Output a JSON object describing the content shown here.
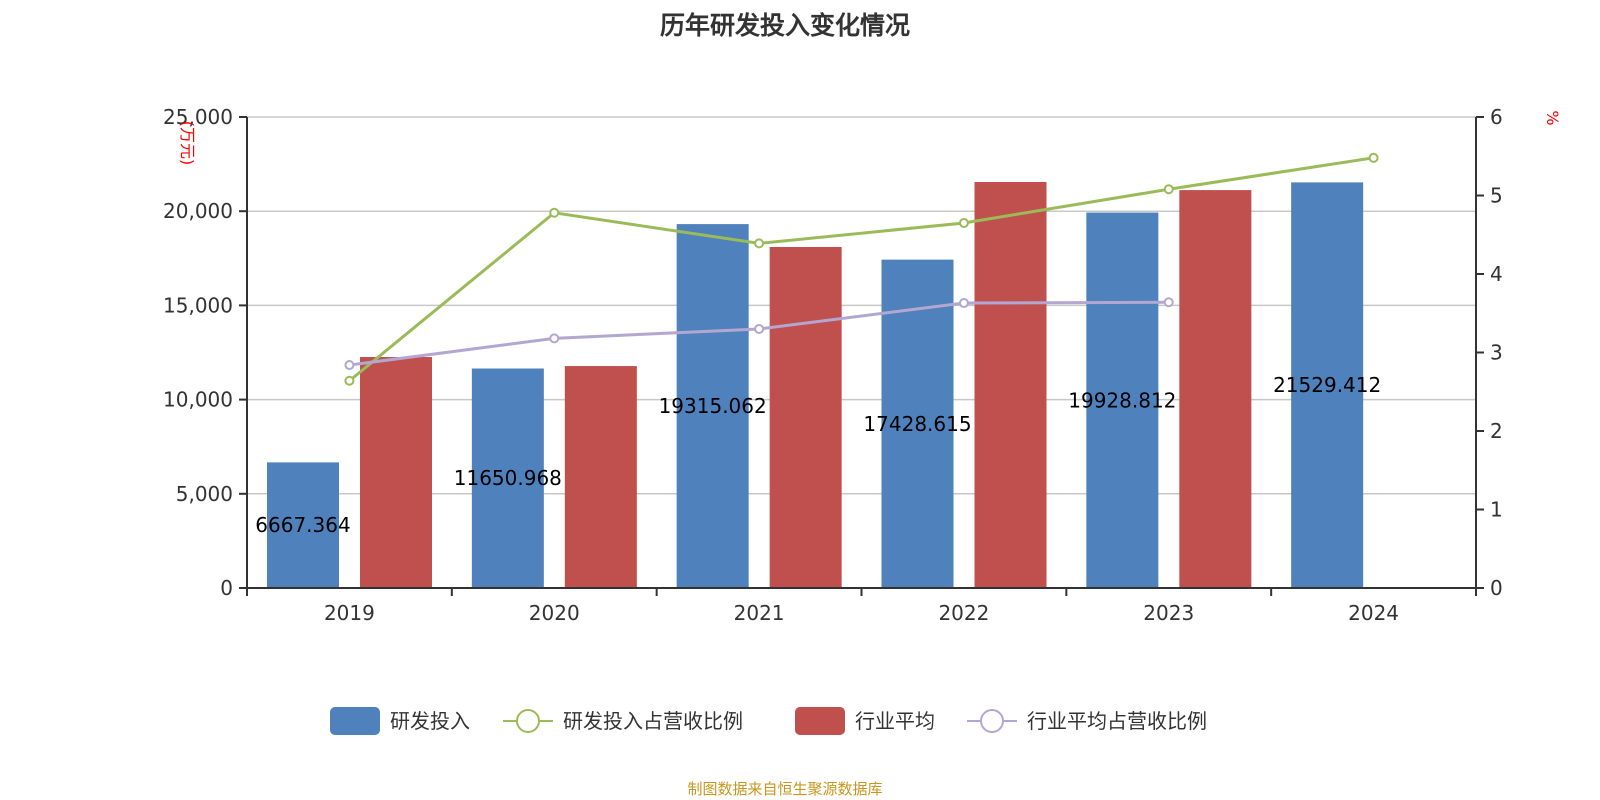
{
  "chart_data": {
    "type": "bar",
    "title": "历年研发投入变化情况",
    "categories": [
      "2019",
      "2020",
      "2021",
      "2022",
      "2023",
      "2024"
    ],
    "left_axis": {
      "label": "(万元)",
      "range": [
        0,
        25000
      ],
      "ticks": [
        "0",
        "5,000",
        "10,000",
        "15,000",
        "20,000",
        "25,000"
      ],
      "tick_values": [
        0,
        5000,
        10000,
        15000,
        20000,
        25000
      ]
    },
    "right_axis": {
      "label": "%",
      "range": [
        0,
        6
      ],
      "ticks": [
        "0",
        "1",
        "2",
        "3",
        "4",
        "5",
        "6"
      ],
      "tick_values": [
        0,
        1,
        2,
        3,
        4,
        5,
        6
      ]
    },
    "grid": true,
    "legend_placement": "bottom",
    "series": [
      {
        "name": "研发投入",
        "type": "bar",
        "axis": "left",
        "color": "#4f81bd",
        "values": [
          6667.364,
          11650.968,
          19315.062,
          17428.615,
          19928.812,
          21529.412
        ],
        "labels": [
          "6667.364",
          "11650.968",
          "19315.062",
          "17428.615",
          "19928.812",
          "21529.412"
        ]
      },
      {
        "name": "研发投入占营收比例",
        "type": "line",
        "axis": "right",
        "color": "#9bbb59",
        "values": [
          2.64,
          4.78,
          4.39,
          4.65,
          5.08,
          5.48
        ]
      },
      {
        "name": "行业平均",
        "type": "bar",
        "axis": "left",
        "color": "#c0504d",
        "values": [
          12260,
          11780,
          18100,
          21550,
          21120,
          null
        ]
      },
      {
        "name": "行业平均占营收比例",
        "type": "line",
        "axis": "right",
        "color": "#b3a7d1",
        "values": [
          2.84,
          3.18,
          3.3,
          3.63,
          3.64,
          null
        ]
      }
    ]
  },
  "source": "制图数据来自恒生聚源数据库"
}
